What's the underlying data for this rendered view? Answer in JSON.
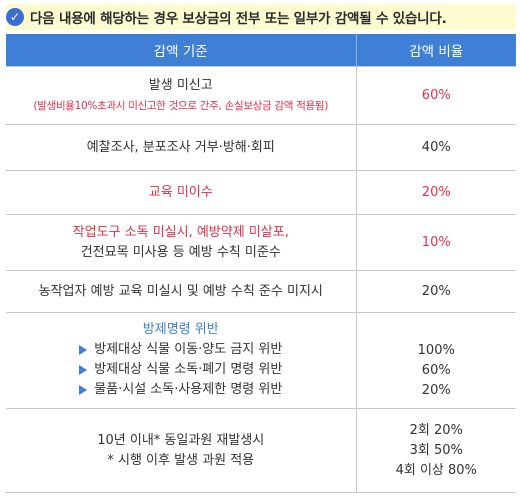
{
  "notice": {
    "text": "다음 내용에 해당하는 경우 보상금의 전부 또는 일부가 감액될 수 있습니다."
  },
  "table": {
    "headers": [
      "감액 기준",
      "감액 비율"
    ],
    "rows": [
      {
        "criteria_main": "발생 미신고",
        "criteria_note": "(발생비율10%초과시 미신고한 것으로 간주, 손실보상금 감액 적용됨)",
        "rate": "60%"
      },
      {
        "criteria_main": "예찰조사, 분포조사 거부·방해·회피",
        "rate": "40%"
      },
      {
        "criteria_main": "교육 미이수",
        "rate": "20%"
      },
      {
        "criteria_line1": "작업도구 소독 미실시, 예방약제 미살포,",
        "criteria_line2": "건전묘목 미사용 등 예방 수칙 미준수",
        "rate": "10%"
      },
      {
        "criteria_main": "농작업자 예방 교육 미실시 및 예방 수칙 준수 미지시",
        "rate": "20%"
      },
      {
        "criteria_title": "방제명령 위반",
        "items": [
          {
            "text": "방제대상 식물 이동·양도 금지 위반",
            "rate": "100%"
          },
          {
            "text": "방제대상 식물 소독·폐기 명령 위반",
            "rate": "60%"
          },
          {
            "text": "물품·시설 소독·사용제한 명령 위반",
            "rate": "20%"
          }
        ]
      },
      {
        "criteria_line1": "10년 이내* 동일과원 재발생시",
        "criteria_line2": "* 시행 이후 발생 과원 적용",
        "rates": [
          "2회 20%",
          "3회 50%",
          "4회 이상 80%"
        ]
      }
    ]
  },
  "colors": {
    "header_bg": "#3f7fd6",
    "accent_red": "#e0304a",
    "notice_bg": "#fffbd1",
    "check_icon": "#3a6fd1"
  }
}
